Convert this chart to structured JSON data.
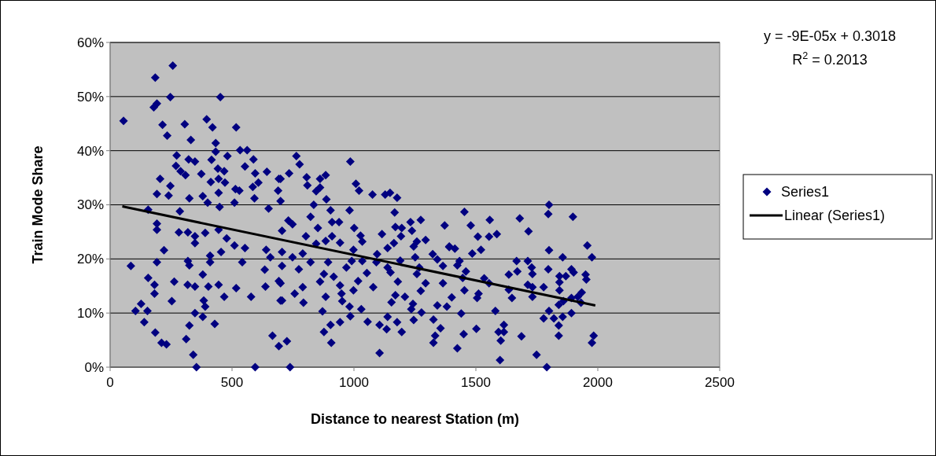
{
  "chart_data": {
    "type": "scatter",
    "xlabel": "Distance to nearest Station (m)",
    "ylabel": "Train Mode Share",
    "xlim": [
      0,
      2500
    ],
    "xticks": [
      0,
      500,
      1000,
      1500,
      2000,
      2500
    ],
    "ylim": [
      0,
      0.6
    ],
    "yticks": [
      {
        "value": 0,
        "label": "0%"
      },
      {
        "value": 0.1,
        "label": "10%"
      },
      {
        "value": 0.2,
        "label": "20%"
      },
      {
        "value": 0.3,
        "label": "30%"
      },
      {
        "value": 0.4,
        "label": "40%"
      },
      {
        "value": 0.5,
        "label": "50%"
      },
      {
        "value": 0.6,
        "label": "60%"
      }
    ],
    "grid": "y",
    "legend": "right",
    "annotations": [
      "y = -9E-05x + 0.3018",
      "R$^{2}$ = 0.2013"
    ],
    "series": [
      {
        "name": "Series1",
        "marker": "diamond",
        "color": "#000080",
        "x": [
          55,
          185,
          257,
          247,
          179,
          192,
          452,
          215,
          234,
          306,
          331,
          396,
          420,
          517,
          433,
          433,
          273,
          322,
          348,
          416,
          481,
          533,
          562,
          588,
          553,
          270,
          309,
          289,
          374,
          442,
          468,
          205,
          247,
          192,
          240,
          325,
          413,
          445,
          471,
          595,
          643,
          692,
          689,
          608,
          585,
          380,
          445,
          514,
          530,
          592,
          699,
          156,
          286,
          400,
          510,
          449,
          650,
          192,
          192,
          282,
          319,
          348,
          348,
          390,
          445,
          221,
          192,
          85,
          319,
          325,
          410,
          410,
          455,
          542,
          478,
          510,
          553,
          634,
          657,
          640,
          156,
          182,
          182,
          263,
          380,
          318,
          348,
          403,
          445,
          517,
          637,
          692,
          253,
          384,
          390,
          468,
          578,
          699,
          127,
          104,
          153,
          140,
          348,
          380,
          429,
          325,
          185,
          312,
          211,
          231,
          341,
          354,
          595,
          666,
          692,
          764,
          777,
          985,
          734,
          699,
          806,
          884,
          861,
          809,
          861,
          845,
          1008,
          1021,
          1076,
          1128,
          1148,
          1177,
          887,
          835,
          904,
          982,
          1167,
          822,
          910,
          939,
          1232,
          1274,
          1372,
          731,
          748,
          852,
          1001,
          1170,
          1196,
          1238,
          1115,
          1027,
          910,
          803,
          705,
          1193,
          1034,
          943,
          884,
          845,
          1164,
          1258,
          1294,
          1245,
          1138,
          1391,
          998,
          705,
          790,
          1095,
          1323,
          748,
          1251,
          822,
          991,
          1034,
          1092,
          1190,
          1342,
          705,
          774,
          969,
          1138,
          1268,
          1365,
          894,
          877,
          1053,
          1150,
          1258,
          861,
          917,
          1017,
          1180,
          1294,
          1365,
          699,
          790,
          943,
          1079,
          1274,
          757,
          884,
          998,
          1170,
          949,
          1209,
          705,
          793,
          952,
          1154,
          1242,
          1342,
          982,
          1030,
          871,
          1235,
          1277,
          985,
          1138,
          1326,
          943,
          904,
          1056,
          1105,
          1177,
          1245,
          1134,
          1196,
          1355,
          877,
          1333,
          1326,
          725,
          907,
          1105,
          738,
          1453,
          1479,
          1557,
          1680,
          1800,
          1797,
          1898,
          1716,
          1508,
          1554,
          1586,
          1391,
          1414,
          1485,
          1521,
          1800,
          1957,
          1976,
          1856,
          1433,
          1424,
          1459,
          1446,
          1667,
          1713,
          1729,
          1732,
          1670,
          1635,
          1797,
          1892,
          1901,
          1843,
          1869,
          1950,
          1953,
          1843,
          1534,
          1554,
          1713,
          1732,
          1778,
          1843,
          1453,
          1511,
          1505,
          1635,
          1648,
          1732,
          1934,
          1918,
          1892,
          1859,
          1840,
          1931,
          1401,
          1381,
          1440,
          1580,
          1800,
          1892,
          1778,
          1820,
          1856,
          1840,
          1840,
          1502,
          1450,
          1615,
          1593,
          1615,
          1602,
          1687,
          1983,
          1976,
          1424,
          1599,
          1749,
          1791
        ],
        "values": [
          0.455,
          0.535,
          0.557,
          0.499,
          0.48,
          0.487,
          0.499,
          0.448,
          0.428,
          0.449,
          0.42,
          0.458,
          0.443,
          0.443,
          0.414,
          0.398,
          0.391,
          0.384,
          0.38,
          0.383,
          0.39,
          0.401,
          0.401,
          0.384,
          0.371,
          0.372,
          0.355,
          0.362,
          0.357,
          0.367,
          0.362,
          0.348,
          0.335,
          0.32,
          0.317,
          0.312,
          0.342,
          0.348,
          0.341,
          0.358,
          0.361,
          0.348,
          0.326,
          0.341,
          0.333,
          0.316,
          0.322,
          0.329,
          0.326,
          0.312,
          0.307,
          0.291,
          0.288,
          0.304,
          0.304,
          0.296,
          0.293,
          0.265,
          0.254,
          0.249,
          0.249,
          0.242,
          0.229,
          0.248,
          0.254,
          0.216,
          0.194,
          0.187,
          0.196,
          0.188,
          0.206,
          0.194,
          0.213,
          0.194,
          0.238,
          0.225,
          0.22,
          0.18,
          0.203,
          0.217,
          0.165,
          0.152,
          0.136,
          0.158,
          0.171,
          0.152,
          0.149,
          0.149,
          0.152,
          0.146,
          0.149,
          0.159,
          0.122,
          0.123,
          0.112,
          0.13,
          0.13,
          0.123,
          0.117,
          0.104,
          0.104,
          0.083,
          0.1,
          0.093,
          0.08,
          0.077,
          0.064,
          0.052,
          0.045,
          0.042,
          0.023,
          0,
          0,
          0.058,
          0.039,
          0.39,
          0.375,
          0.38,
          0.358,
          0.348,
          0.351,
          0.355,
          0.348,
          0.336,
          0.332,
          0.325,
          0.339,
          0.326,
          0.319,
          0.319,
          0.322,
          0.313,
          0.31,
          0.3,
          0.29,
          0.29,
          0.286,
          0.278,
          0.268,
          0.268,
          0.268,
          0.272,
          0.262,
          0.271,
          0.264,
          0.257,
          0.257,
          0.259,
          0.257,
          0.252,
          0.246,
          0.243,
          0.242,
          0.242,
          0.252,
          0.242,
          0.232,
          0.23,
          0.233,
          0.228,
          0.229,
          0.232,
          0.235,
          0.223,
          0.22,
          0.223,
          0.217,
          0.213,
          0.21,
          0.209,
          0.209,
          0.203,
          0.203,
          0.194,
          0.196,
          0.196,
          0.194,
          0.197,
          0.199,
          0.187,
          0.181,
          0.184,
          0.184,
          0.184,
          0.187,
          0.194,
          0.172,
          0.174,
          0.175,
          0.172,
          0.158,
          0.167,
          0.159,
          0.158,
          0.155,
          0.155,
          0.155,
          0.148,
          0.151,
          0.148,
          0.141,
          0.136,
          0.13,
          0.142,
          0.133,
          0.136,
          0.13,
          0.123,
          0.119,
          0.122,
          0.12,
          0.117,
          0.114,
          0.112,
          0.107,
          0.103,
          0.107,
          0.101,
          0.094,
          0.093,
          0.088,
          0.083,
          0.078,
          0.084,
          0.078,
          0.083,
          0.087,
          0.07,
          0.065,
          0.072,
          0.065,
          0.058,
          0.045,
          0.048,
          0.045,
          0.026,
          0,
          0.287,
          0.262,
          0.272,
          0.275,
          0.3,
          0.283,
          0.278,
          0.251,
          0.241,
          0.241,
          0.246,
          0.222,
          0.219,
          0.21,
          0.217,
          0.216,
          0.225,
          0.203,
          0.203,
          0.196,
          0.188,
          0.177,
          0.165,
          0.196,
          0.196,
          0.184,
          0.172,
          0.177,
          0.171,
          0.181,
          0.181,
          0.175,
          0.168,
          0.168,
          0.171,
          0.162,
          0.157,
          0.164,
          0.155,
          0.152,
          0.148,
          0.148,
          0.142,
          0.142,
          0.136,
          0.128,
          0.143,
          0.128,
          0.13,
          0.138,
          0.13,
          0.128,
          0.122,
          0.115,
          0.119,
          0.129,
          0.112,
          0.099,
          0.104,
          0.104,
          0.1,
          0.09,
          0.09,
          0.093,
          0.077,
          0.058,
          0.071,
          0.061,
          0.078,
          0.065,
          0.065,
          0.049,
          0.057,
          0.058,
          0.045,
          0.035,
          0.013,
          0.023,
          0
        ]
      },
      {
        "name": "Linear (Series1)",
        "type": "line",
        "color": "#000000",
        "line_style": "solid",
        "marker": "none",
        "x": [
          50,
          1990
        ],
        "values": [
          0.297,
          0.114
        ]
      }
    ]
  }
}
